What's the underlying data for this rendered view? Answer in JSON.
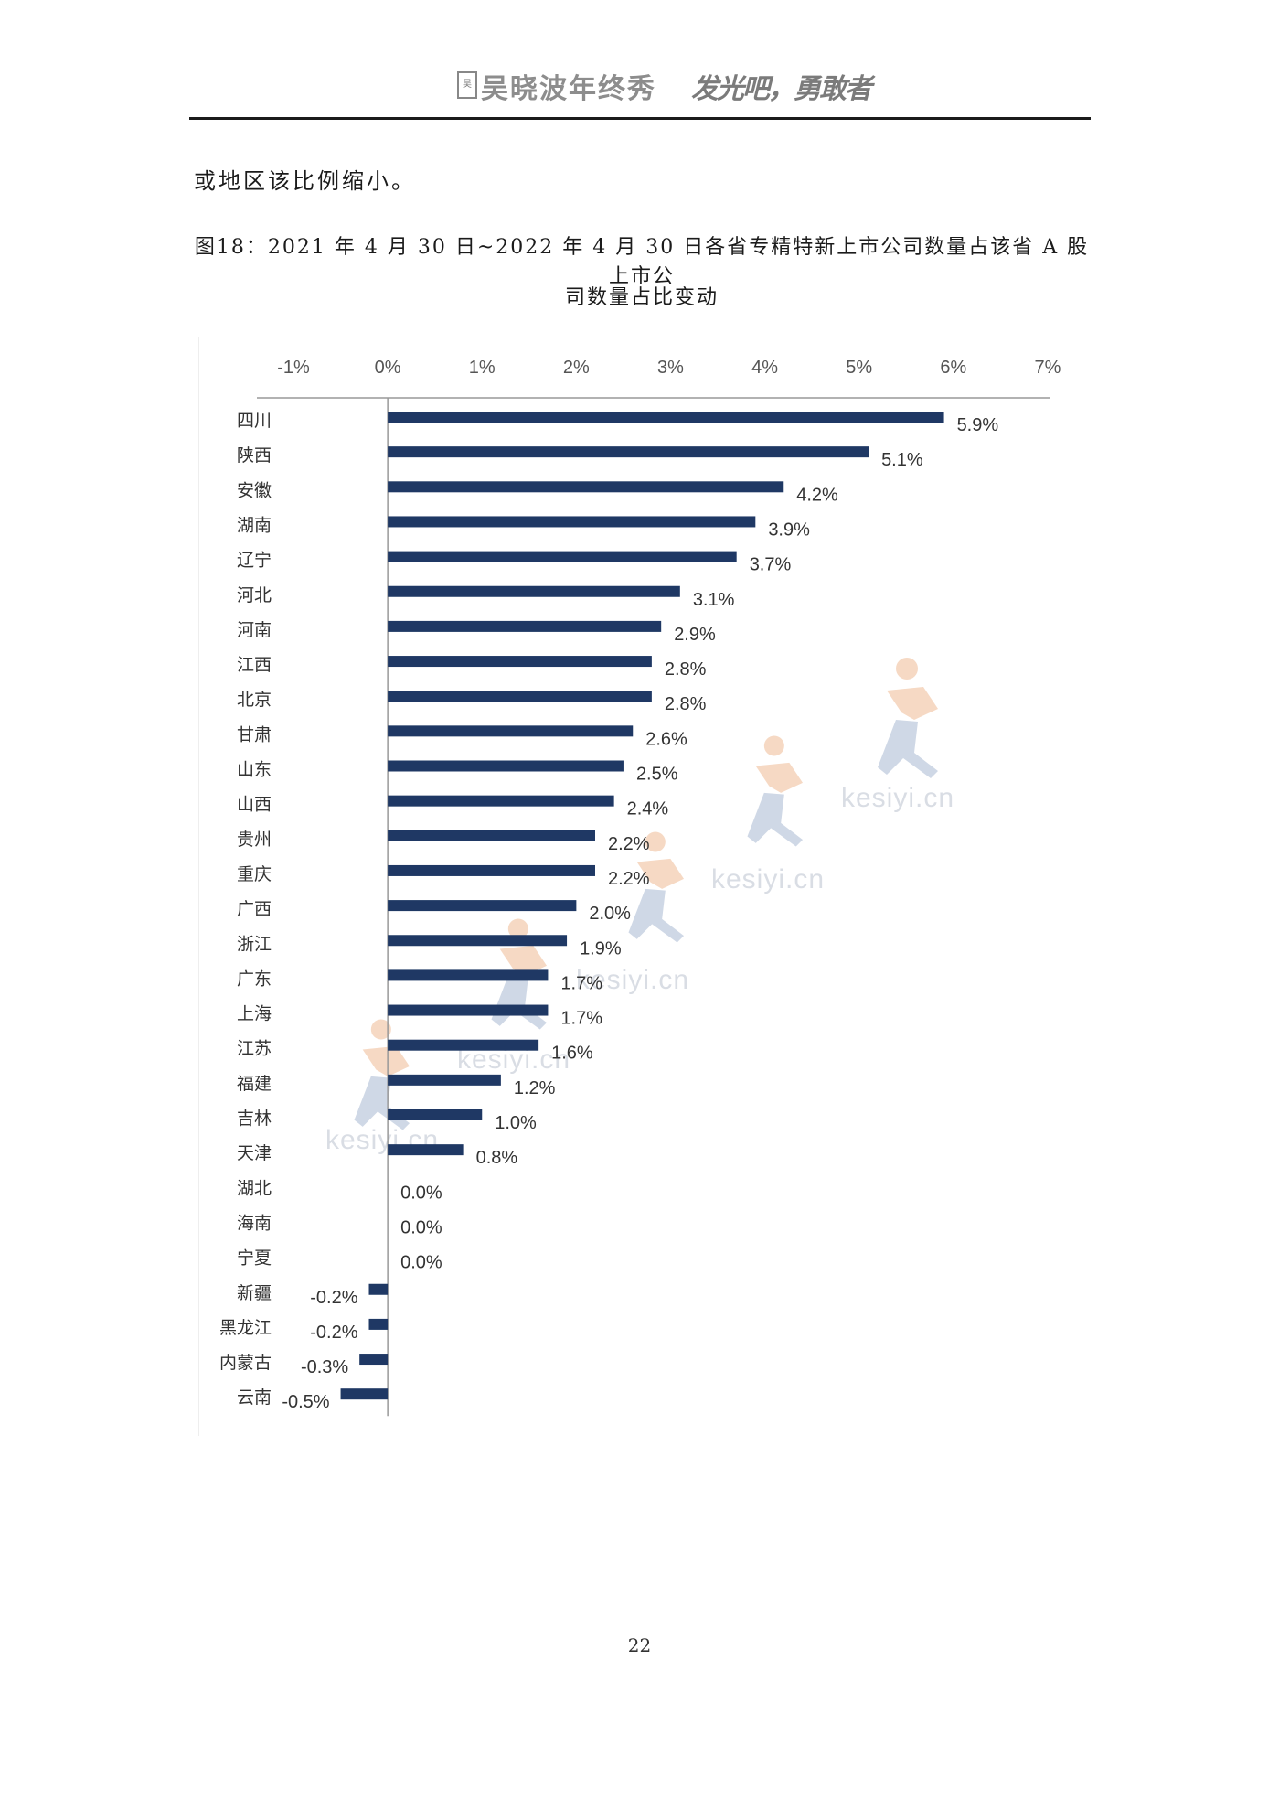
{
  "header": {
    "logo_text": "吴",
    "title": "吴晓波年终秀",
    "slogan": "发光吧，勇敢者"
  },
  "body": {
    "text": "或地区该比例缩小。"
  },
  "figure": {
    "title_line1": "图18：2021 年 4 月 30 日~2022 年 4 月 30 日各省专精特新上市公司数量占该省 A 股上市公",
    "title_line2": "司数量占比变动"
  },
  "watermarks": [
    "kesiyi.cn",
    "kesiyi.cn",
    "kesiyi.cn",
    "kesiyi.cn",
    "kesiyi.cn"
  ],
  "colors": {
    "bar": "#1f3864",
    "axis": "#999999",
    "watermark_figure": "#f2c9ad",
    "watermark_figure_blue": "#c9d3e2"
  },
  "page_number": "22",
  "chart_data": {
    "type": "bar",
    "orientation": "horizontal",
    "xlim": [
      -0.01,
      0.07
    ],
    "ticks": [
      "-1%",
      "0%",
      "1%",
      "2%",
      "3%",
      "4%",
      "5%",
      "6%",
      "7%"
    ],
    "tick_values": [
      -0.01,
      0,
      0.01,
      0.02,
      0.03,
      0.04,
      0.05,
      0.06,
      0.07
    ],
    "categories": [
      "四川",
      "陕西",
      "安徽",
      "湖南",
      "辽宁",
      "河北",
      "河南",
      "江西",
      "北京",
      "甘肃",
      "山东",
      "山西",
      "贵州",
      "重庆",
      "广西",
      "浙江",
      "广东",
      "上海",
      "江苏",
      "福建",
      "吉林",
      "天津",
      "湖北",
      "海南",
      "宁夏",
      "新疆",
      "黑龙江",
      "内蒙古",
      "云南"
    ],
    "values": [
      0.059,
      0.051,
      0.042,
      0.039,
      0.037,
      0.031,
      0.029,
      0.028,
      0.028,
      0.026,
      0.025,
      0.024,
      0.022,
      0.022,
      0.02,
      0.019,
      0.017,
      0.017,
      0.016,
      0.012,
      0.01,
      0.008,
      0.0,
      0.0,
      0.0,
      -0.002,
      -0.002,
      -0.003,
      -0.005
    ],
    "labels": [
      "5.9%",
      "5.1%",
      "4.2%",
      "3.9%",
      "3.7%",
      "3.1%",
      "2.9%",
      "2.8%",
      "2.8%",
      "2.6%",
      "2.5%",
      "2.4%",
      "2.2%",
      "2.2%",
      "2.0%",
      "1.9%",
      "1.7%",
      "1.7%",
      "1.6%",
      "1.2%",
      "1.0%",
      "0.8%",
      "0.0%",
      "0.0%",
      "0.0%",
      "-0.2%",
      "-0.2%",
      "-0.3%",
      "-0.5%"
    ],
    "grid": false,
    "legend": "none",
    "axis_position": "top"
  }
}
